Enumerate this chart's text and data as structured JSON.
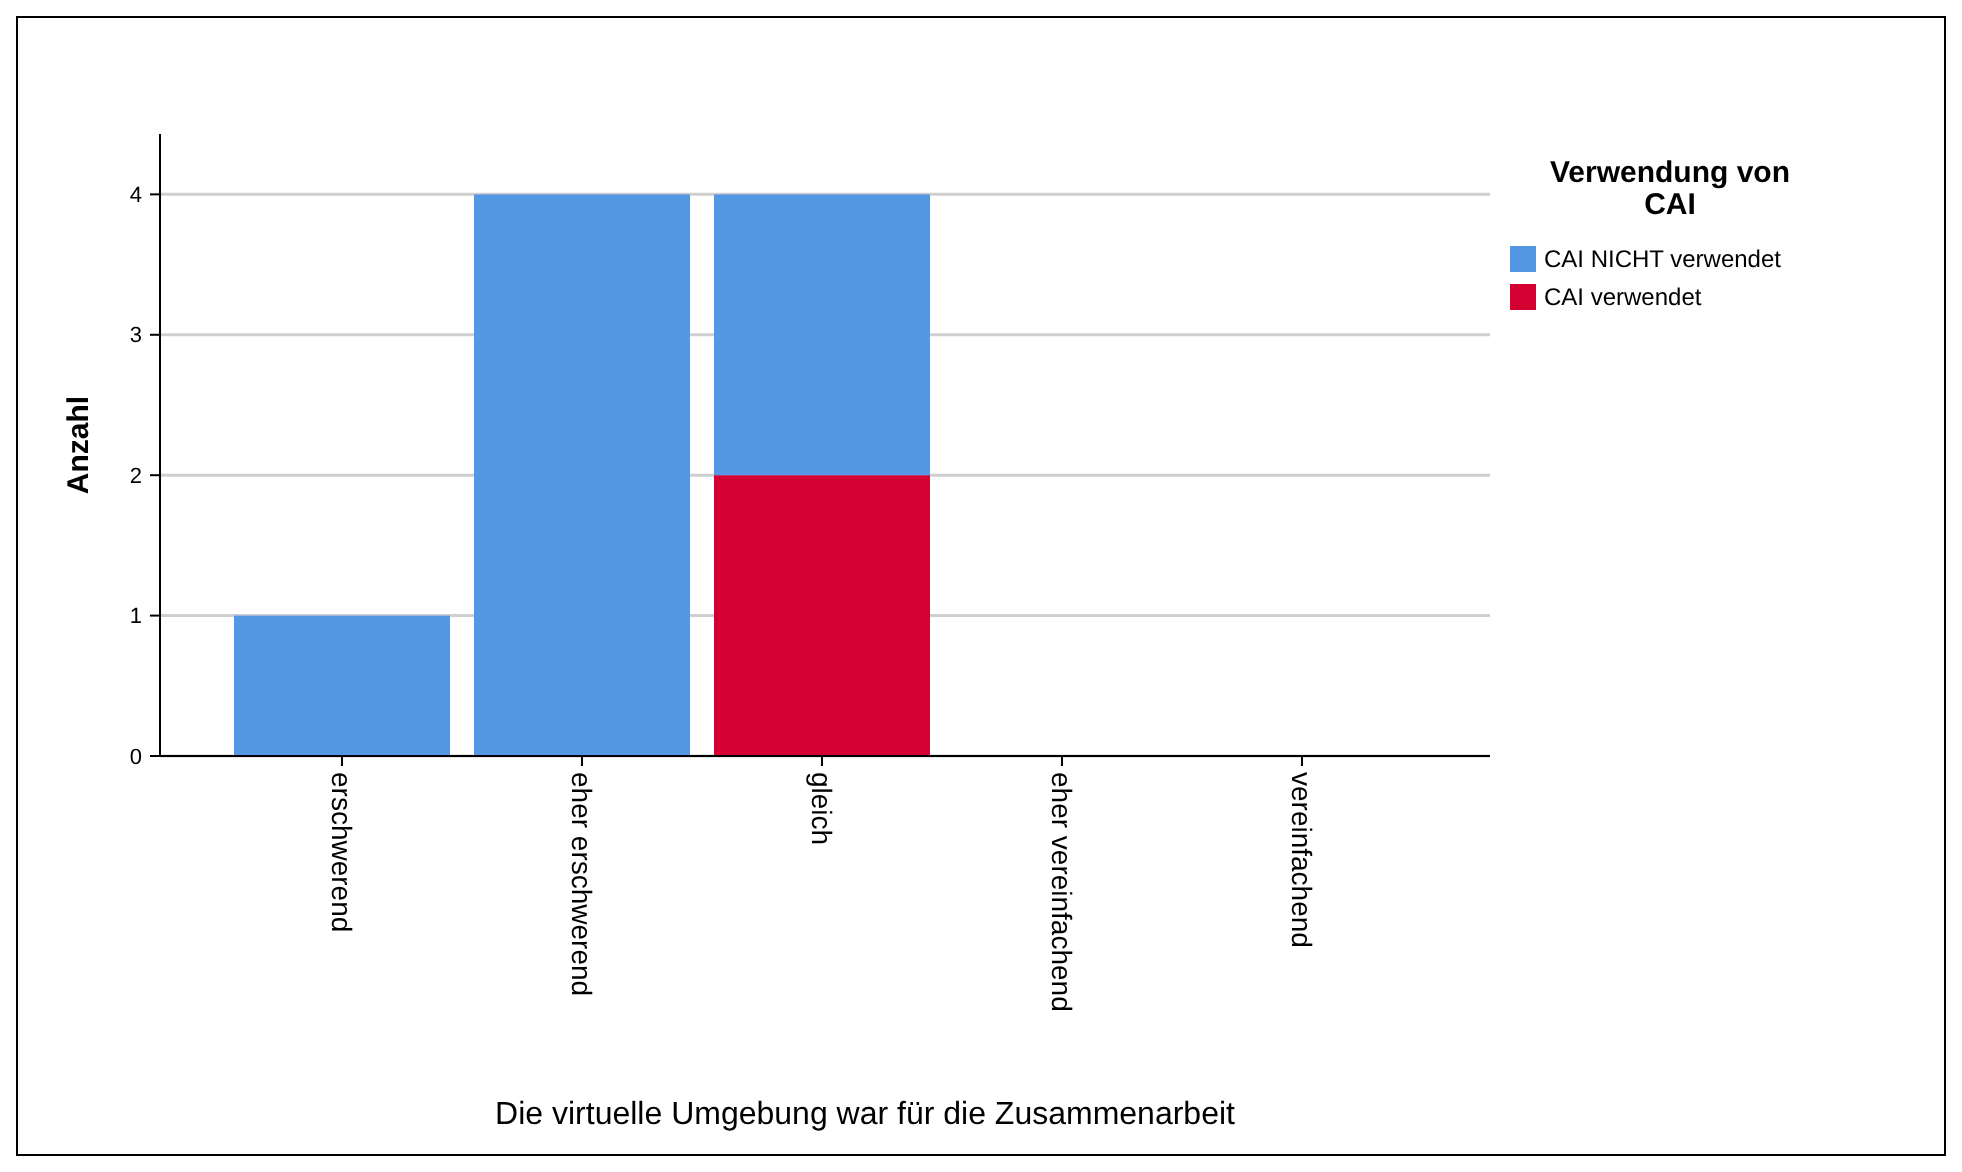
{
  "chart_data": {
    "type": "bar",
    "stacked": true,
    "xlabel": "Die virtuelle Umgebung war für die Zusammenarbeit",
    "ylabel": "Anzahl",
    "legend_title": "Verwendung von CAI",
    "legend": "top right",
    "grid": "y",
    "categories": [
      "erschwerend",
      "eher erschwerend",
      "gleich",
      "eher vereinfachend",
      "vereinfachend"
    ],
    "ylim": [
      0,
      4.43
    ],
    "yticks": [
      0,
      1,
      2,
      3,
      4
    ],
    "series": [
      {
        "name": "CAI verwendet",
        "color": "#d50032",
        "values": [
          0,
          0,
          2,
          0,
          0
        ]
      },
      {
        "name": "CAI NICHT verwendet",
        "color": "#5497e3",
        "values": [
          1,
          4,
          2,
          0,
          0
        ]
      }
    ]
  }
}
